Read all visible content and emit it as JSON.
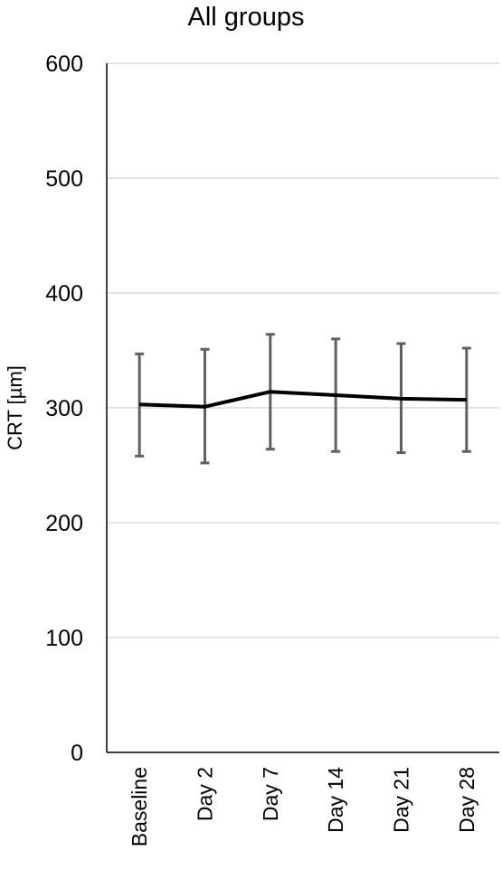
{
  "chart_data": {
    "type": "line",
    "title": "All groups",
    "ylabel": "CRT [µm]",
    "xlabel": "",
    "ylim": [
      0,
      600
    ],
    "yticks": [
      0,
      100,
      200,
      300,
      400,
      500,
      600
    ],
    "ytick_labels": [
      "0",
      "100",
      "200",
      "300",
      "400",
      "500",
      "600"
    ],
    "grid": true,
    "legend": "none",
    "categories": [
      "Baseline",
      "Day 2",
      "Day 7",
      "Day 14",
      "Day 21",
      "Day 28"
    ],
    "series": [
      {
        "values": [
          303,
          301,
          314,
          311,
          308,
          307
        ],
        "error_low": [
          258,
          252,
          264,
          262,
          261,
          262
        ],
        "error_high": [
          347,
          351,
          364,
          360,
          356,
          352
        ]
      }
    ],
    "colors": {
      "line": "#000000",
      "error_bar": "#606060",
      "grid": "#d9d9d9",
      "axis": "#000000"
    }
  }
}
